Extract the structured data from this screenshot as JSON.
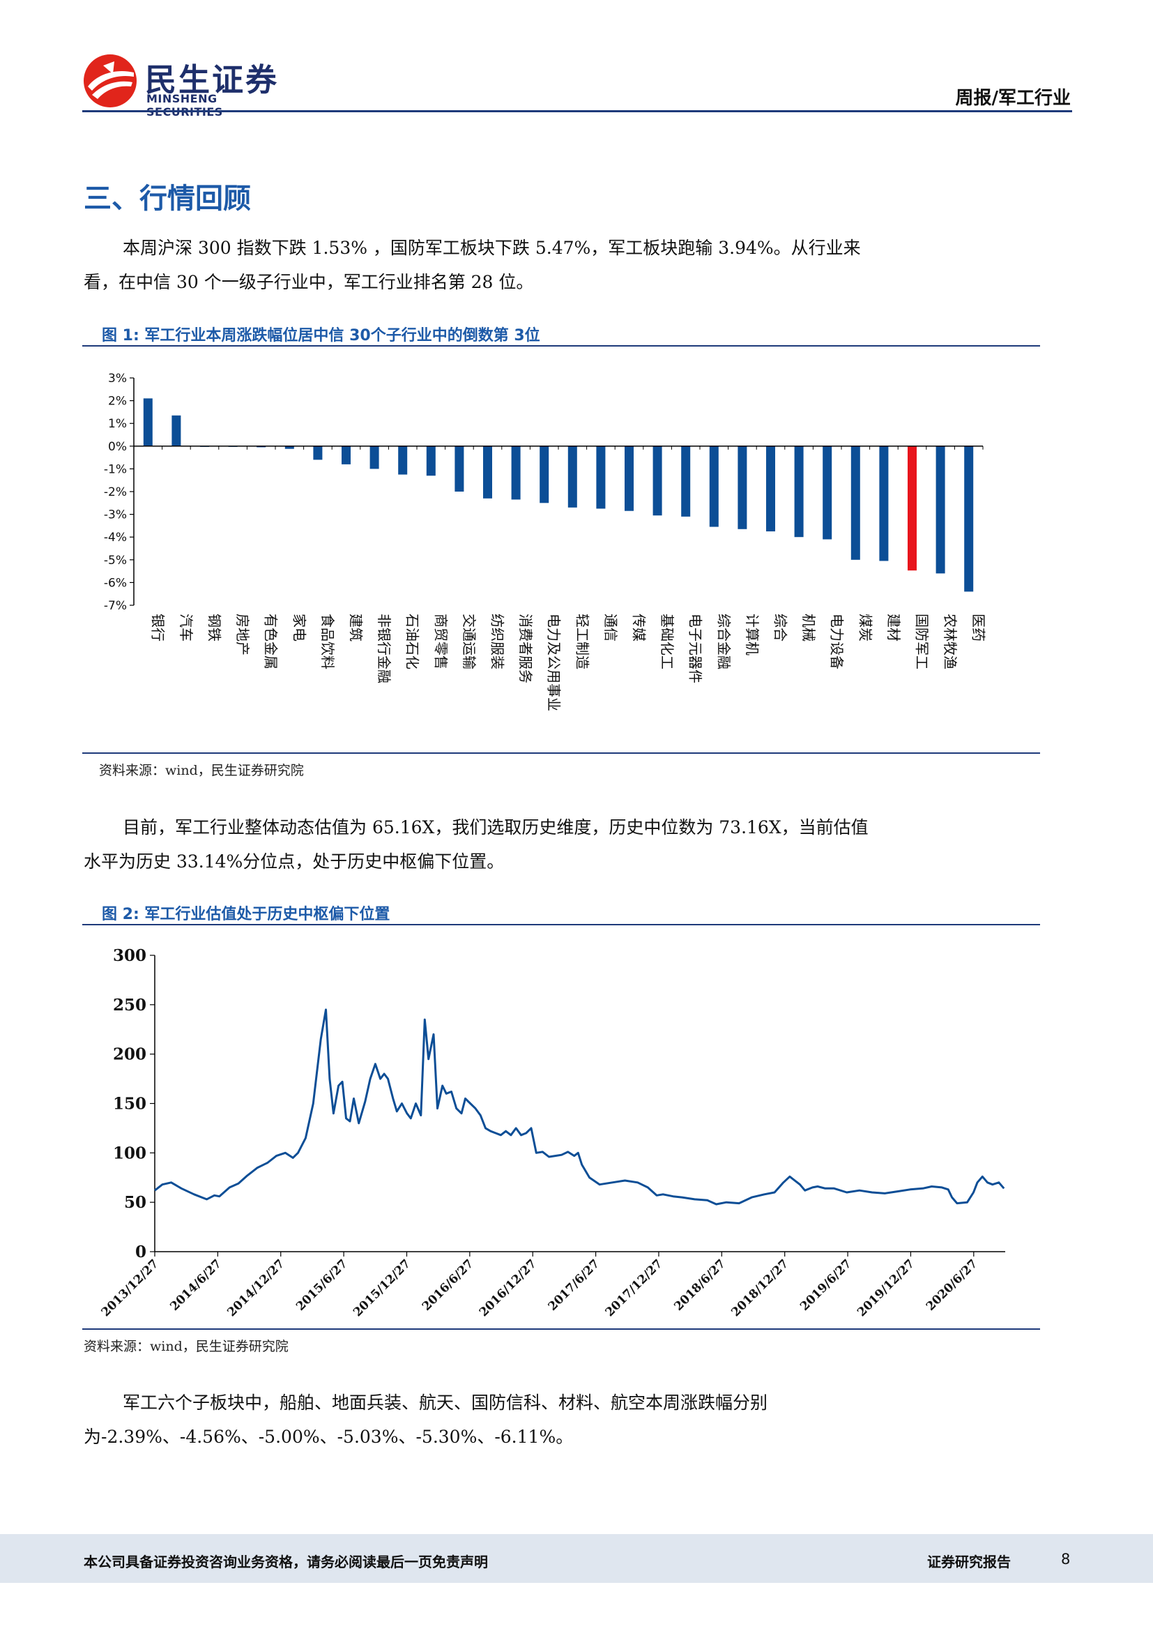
{
  "header": {
    "logo_cn": "民生证券",
    "logo_en": "MINSHENG SECURITIES",
    "report_type": "周报/军工行业"
  },
  "section_title": "三、行情回顾",
  "paragraphs": [
    "本周沪深 300 指数下跌 1.53% ，国防军工板块下跌 5.47%，军工板块跑输 3.94%。从行业来看，在中信 30 个一级子行业中，军工行业排名第 28 位。",
    "目前，军工行业整体动态估值为 65.16X，我们选取历史维度，历史中位数为 73.16X，当前估值水平为历史 33.14%分位点，处于历史中枢偏下位置。",
    "军工六个子板块中，船舶、地面兵装、航天、国防信科、材料、航空本周涨跌幅分别为-2.39%、-4.56%、-5.00%、-5.03%、-5.30%、-6.11%。"
  ],
  "figure1": {
    "title": "图 1:  军工行业本周涨跌幅位居中信 30个子行业中的倒数第 3位",
    "source": "资料来源：wind，民生证券研究院"
  },
  "figure2": {
    "title": "图 2:  军工行业估值处于历史中枢偏下位置",
    "source": "资料来源：wind，民生证券研究院"
  },
  "chart_data": [
    {
      "type": "bar",
      "categories": [
        "银行",
        "汽车",
        "钢铁",
        "房地产",
        "有色金属",
        "家电",
        "食品饮料",
        "建筑",
        "非银行金融",
        "石油石化",
        "商贸零售",
        "交通运输",
        "纺织服装",
        "消费者服务",
        "电力及公用事业",
        "轻工制造",
        "通信",
        "传媒",
        "基础化工",
        "电子元器件",
        "综合金融",
        "计算机",
        "综合",
        "机械",
        "电力设备",
        "煤炭",
        "建材",
        "国防军工",
        "农林牧渔",
        "医药"
      ],
      "values": [
        2.1,
        1.35,
        0.0,
        -0.03,
        -0.05,
        -0.12,
        -0.6,
        -0.8,
        -1.0,
        -1.25,
        -1.3,
        -2.0,
        -2.3,
        -2.35,
        -2.5,
        -2.7,
        -2.75,
        -2.85,
        -3.05,
        -3.1,
        -3.55,
        -3.65,
        -3.75,
        -4.0,
        -4.1,
        -5.0,
        -5.05,
        -5.47,
        -5.6,
        -6.4
      ],
      "highlight": "国防军工",
      "colors": {
        "bar": "#0c4e96",
        "highlight": "#e8151c"
      },
      "yticks": [
        "3%",
        "2%",
        "1%",
        "0%",
        "-1%",
        "-2%",
        "-3%",
        "-4%",
        "-5%",
        "-6%",
        "-7%"
      ],
      "ylim": [
        -7,
        3
      ],
      "grid": false
    },
    {
      "type": "line",
      "color": "#0c4e96",
      "ylim": [
        0,
        300
      ],
      "yticks": [
        "0",
        "50",
        "100",
        "150",
        "200",
        "250",
        "300"
      ],
      "xticks": [
        "2013/12/27",
        "2014/6/27",
        "2014/12/27",
        "2015/6/27",
        "2015/12/27",
        "2016/6/27",
        "2016/12/27",
        "2017/6/27",
        "2017/12/27",
        "2018/6/27",
        "2018/12/27",
        "2019/6/27",
        "2019/12/27",
        "2020/6/27"
      ],
      "x": [
        2013.99,
        2014.05,
        2014.12,
        2014.2,
        2014.3,
        2014.4,
        2014.46,
        2014.5,
        2014.58,
        2014.65,
        2014.72,
        2014.8,
        2014.88,
        2014.95,
        2015.02,
        2015.08,
        2015.12,
        2015.18,
        2015.24,
        2015.3,
        2015.34,
        2015.37,
        2015.4,
        2015.44,
        2015.47,
        2015.5,
        2015.53,
        2015.56,
        2015.6,
        2015.65,
        2015.69,
        2015.73,
        2015.77,
        2015.8,
        2015.83,
        2015.87,
        2015.9,
        2015.94,
        2015.98,
        2016.01,
        2016.05,
        2016.09,
        2016.12,
        2016.15,
        2016.19,
        2016.22,
        2016.26,
        2016.29,
        2016.33,
        2016.37,
        2016.41,
        2016.44,
        2016.48,
        2016.52,
        2016.56,
        2016.6,
        2016.64,
        2016.68,
        2016.72,
        2016.76,
        2016.8,
        2016.84,
        2016.88,
        2016.92,
        2016.96,
        2017.0,
        2017.05,
        2017.1,
        2017.15,
        2017.2,
        2017.25,
        2017.3,
        2017.33,
        2017.36,
        2017.42,
        2017.5,
        2017.6,
        2017.7,
        2017.8,
        2017.88,
        2017.95,
        2018.0,
        2018.08,
        2018.15,
        2018.25,
        2018.35,
        2018.42,
        2018.5,
        2018.6,
        2018.7,
        2018.8,
        2018.88,
        2018.95,
        2019.0,
        2019.08,
        2019.12,
        2019.18,
        2019.22,
        2019.28,
        2019.35,
        2019.45,
        2019.55,
        2019.65,
        2019.75,
        2019.85,
        2019.95,
        2020.05,
        2020.12,
        2020.2,
        2020.25,
        2020.28,
        2020.32,
        2020.4,
        2020.45,
        2020.48,
        2020.52,
        2020.56,
        2020.6,
        2020.65,
        2020.69
      ],
      "y": [
        62,
        68,
        70,
        64,
        58,
        53,
        57,
        56,
        65,
        69,
        77,
        85,
        90,
        97,
        100,
        95,
        100,
        115,
        150,
        215,
        245,
        175,
        140,
        168,
        172,
        135,
        132,
        155,
        130,
        152,
        175,
        190,
        175,
        180,
        175,
        155,
        142,
        150,
        140,
        135,
        150,
        138,
        235,
        195,
        220,
        145,
        168,
        160,
        162,
        145,
        140,
        155,
        150,
        145,
        138,
        125,
        122,
        120,
        118,
        122,
        118,
        125,
        118,
        120,
        125,
        100,
        101,
        96,
        97,
        98,
        101,
        97,
        100,
        88,
        75,
        68,
        70,
        72,
        70,
        65,
        57,
        58,
        56,
        55,
        53,
        52,
        48,
        50,
        49,
        55,
        58,
        60,
        70,
        76,
        68,
        62,
        65,
        66,
        64,
        64,
        60,
        62,
        60,
        59,
        61,
        63,
        64,
        66,
        65,
        63,
        55,
        49,
        50,
        60,
        70,
        76,
        70,
        68,
        70,
        64
      ]
    }
  ],
  "footer": {
    "disclaimer": "本公司具备证券投资咨询业务资格，请务必阅读最后一页免责声明",
    "report_label": "证券研究报告",
    "page_number": "8"
  }
}
